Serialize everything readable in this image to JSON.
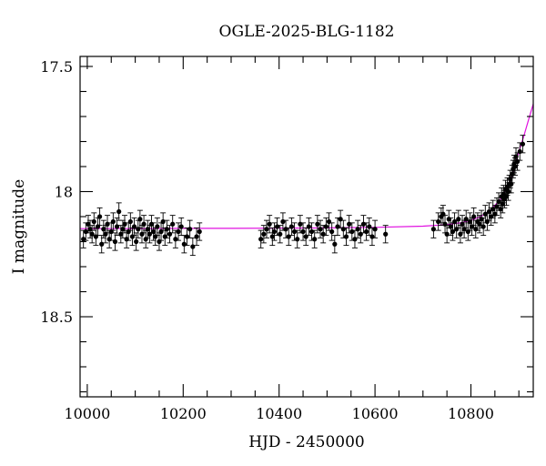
{
  "chart_data": {
    "type": "scatter",
    "title": "OGLE-2025-BLG-1182",
    "xlabel": "HJD - 2450000",
    "ylabel": "I magnitude",
    "xlim": [
      9985,
      10930
    ],
    "ylim": [
      18.82,
      17.46
    ],
    "y_inverted": true,
    "grid": false,
    "x_ticks": [
      10000,
      10200,
      10400,
      10600,
      10800
    ],
    "x_tick_labels": [
      "10000",
      "10200",
      "10400",
      "10600",
      "10800"
    ],
    "x_minor_ticks": [
      10050,
      10100,
      10150,
      10250,
      10300,
      10350,
      10450,
      10500,
      10550,
      10650,
      10700,
      10750,
      10850,
      10900
    ],
    "y_ticks": [
      17.5,
      18.0,
      18.5
    ],
    "y_tick_labels": [
      "17.5",
      "18",
      "18.5"
    ],
    "y_minor_ticks": [
      17.6,
      17.7,
      17.8,
      17.9,
      18.1,
      18.2,
      18.3,
      18.4,
      18.6,
      18.7,
      18.8
    ],
    "colors": {
      "points": "#000000",
      "model": "#e010e0"
    },
    "series": [
      {
        "type": "scatter-errorbar",
        "err": 0.035,
        "points": [
          [
            9992,
            18.19
          ],
          [
            9997,
            18.16
          ],
          [
            10002,
            18.13
          ],
          [
            10006,
            18.15
          ],
          [
            10010,
            18.17
          ],
          [
            10014,
            18.12
          ],
          [
            10018,
            18.18
          ],
          [
            10022,
            18.14
          ],
          [
            10026,
            18.1
          ],
          [
            10030,
            18.21
          ],
          [
            10034,
            18.15
          ],
          [
            10038,
            18.17
          ],
          [
            10042,
            18.13
          ],
          [
            10046,
            18.19
          ],
          [
            10050,
            18.16
          ],
          [
            10054,
            18.12
          ],
          [
            10058,
            18.2
          ],
          [
            10062,
            18.14
          ],
          [
            10066,
            18.08
          ],
          [
            10070,
            18.17
          ],
          [
            10074,
            18.15
          ],
          [
            10078,
            18.13
          ],
          [
            10082,
            18.19
          ],
          [
            10086,
            18.16
          ],
          [
            10090,
            18.12
          ],
          [
            10094,
            18.18
          ],
          [
            10098,
            18.14
          ],
          [
            10102,
            18.2
          ],
          [
            10106,
            18.15
          ],
          [
            10110,
            18.11
          ],
          [
            10114,
            18.17
          ],
          [
            10118,
            18.13
          ],
          [
            10122,
            18.19
          ],
          [
            10126,
            18.15
          ],
          [
            10130,
            18.17
          ],
          [
            10134,
            18.13
          ],
          [
            10138,
            18.16
          ],
          [
            10142,
            18.18
          ],
          [
            10146,
            18.14
          ],
          [
            10150,
            18.2
          ],
          [
            10154,
            18.16
          ],
          [
            10158,
            18.12
          ],
          [
            10162,
            18.18
          ],
          [
            10166,
            18.15
          ],
          [
            10172,
            18.17
          ],
          [
            10178,
            18.13
          ],
          [
            10184,
            18.19
          ],
          [
            10190,
            18.16
          ],
          [
            10196,
            18.14
          ],
          [
            10202,
            18.21
          ],
          [
            10208,
            18.18
          ],
          [
            10214,
            18.15
          ],
          [
            10220,
            18.22
          ],
          [
            10228,
            18.18
          ],
          [
            10234,
            18.16
          ],
          [
            10362,
            18.19
          ],
          [
            10368,
            18.17
          ],
          [
            10374,
            18.15
          ],
          [
            10380,
            18.13
          ],
          [
            10386,
            18.18
          ],
          [
            10390,
            18.16
          ],
          [
            10396,
            18.14
          ],
          [
            10402,
            18.17
          ],
          [
            10408,
            18.12
          ],
          [
            10414,
            18.15
          ],
          [
            10420,
            18.18
          ],
          [
            10426,
            18.14
          ],
          [
            10432,
            18.16
          ],
          [
            10438,
            18.19
          ],
          [
            10444,
            18.13
          ],
          [
            10450,
            18.16
          ],
          [
            10456,
            18.18
          ],
          [
            10462,
            18.14
          ],
          [
            10468,
            18.16
          ],
          [
            10474,
            18.19
          ],
          [
            10480,
            18.13
          ],
          [
            10486,
            18.15
          ],
          [
            10492,
            18.17
          ],
          [
            10498,
            18.14
          ],
          [
            10504,
            18.12
          ],
          [
            10510,
            18.16
          ],
          [
            10516,
            18.21
          ],
          [
            10522,
            18.14
          ],
          [
            10528,
            18.11
          ],
          [
            10534,
            18.15
          ],
          [
            10540,
            18.18
          ],
          [
            10546,
            18.13
          ],
          [
            10552,
            18.16
          ],
          [
            10558,
            18.19
          ],
          [
            10564,
            18.15
          ],
          [
            10570,
            18.17
          ],
          [
            10576,
            18.13
          ],
          [
            10582,
            18.16
          ],
          [
            10588,
            18.14
          ],
          [
            10594,
            18.18
          ],
          [
            10600,
            18.15
          ],
          [
            10622,
            18.17
          ],
          [
            10722,
            18.15
          ],
          [
            10732,
            18.12
          ],
          [
            10738,
            18.1
          ],
          [
            10742,
            18.09
          ],
          [
            10746,
            18.13
          ],
          [
            10750,
            18.17
          ],
          [
            10754,
            18.11
          ],
          [
            10758,
            18.14
          ],
          [
            10762,
            18.16
          ],
          [
            10766,
            18.12
          ],
          [
            10770,
            18.15
          ],
          [
            10774,
            18.11
          ],
          [
            10778,
            18.17
          ],
          [
            10782,
            18.13
          ],
          [
            10786,
            18.15
          ],
          [
            10790,
            18.11
          ],
          [
            10794,
            18.16
          ],
          [
            10798,
            18.12
          ],
          [
            10802,
            18.14
          ],
          [
            10806,
            18.1
          ],
          [
            10810,
            18.15
          ],
          [
            10814,
            18.12
          ],
          [
            10818,
            18.13
          ],
          [
            10822,
            18.11
          ],
          [
            10826,
            18.14
          ],
          [
            10830,
            18.09
          ],
          [
            10834,
            18.12
          ],
          [
            10838,
            18.08
          ],
          [
            10842,
            18.1
          ],
          [
            10846,
            18.07
          ],
          [
            10850,
            18.09
          ],
          [
            10854,
            18.06
          ],
          [
            10858,
            18.04
          ],
          [
            10862,
            18.07
          ],
          [
            10864,
            18.02
          ],
          [
            10866,
            18.05
          ],
          [
            10868,
            18.01
          ],
          [
            10870,
            18.03
          ],
          [
            10872,
            17.99
          ],
          [
            10874,
            18.02
          ],
          [
            10876,
            17.98
          ],
          [
            10878,
            18.0
          ],
          [
            10880,
            17.97
          ],
          [
            10882,
            17.95
          ],
          [
            10884,
            17.97
          ],
          [
            10886,
            17.93
          ],
          [
            10888,
            17.91
          ],
          [
            10890,
            17.89
          ],
          [
            10892,
            17.9
          ],
          [
            10894,
            17.86
          ],
          [
            10897,
            17.88
          ],
          [
            10902,
            17.84
          ],
          [
            10908,
            17.81
          ]
        ]
      },
      {
        "type": "line",
        "points": [
          [
            9985,
            18.148
          ],
          [
            10100,
            18.148
          ],
          [
            10200,
            18.147
          ],
          [
            10300,
            18.147
          ],
          [
            10400,
            18.146
          ],
          [
            10500,
            18.145
          ],
          [
            10600,
            18.143
          ],
          [
            10700,
            18.138
          ],
          [
            10750,
            18.132
          ],
          [
            10780,
            18.124
          ],
          [
            10800,
            18.115
          ],
          [
            10820,
            18.1
          ],
          [
            10840,
            18.075
          ],
          [
            10860,
            18.035
          ],
          [
            10870,
            18.005
          ],
          [
            10880,
            17.965
          ],
          [
            10890,
            17.91
          ],
          [
            10900,
            17.84
          ],
          [
            10910,
            17.78
          ],
          [
            10920,
            17.715
          ],
          [
            10930,
            17.65
          ]
        ]
      }
    ]
  }
}
